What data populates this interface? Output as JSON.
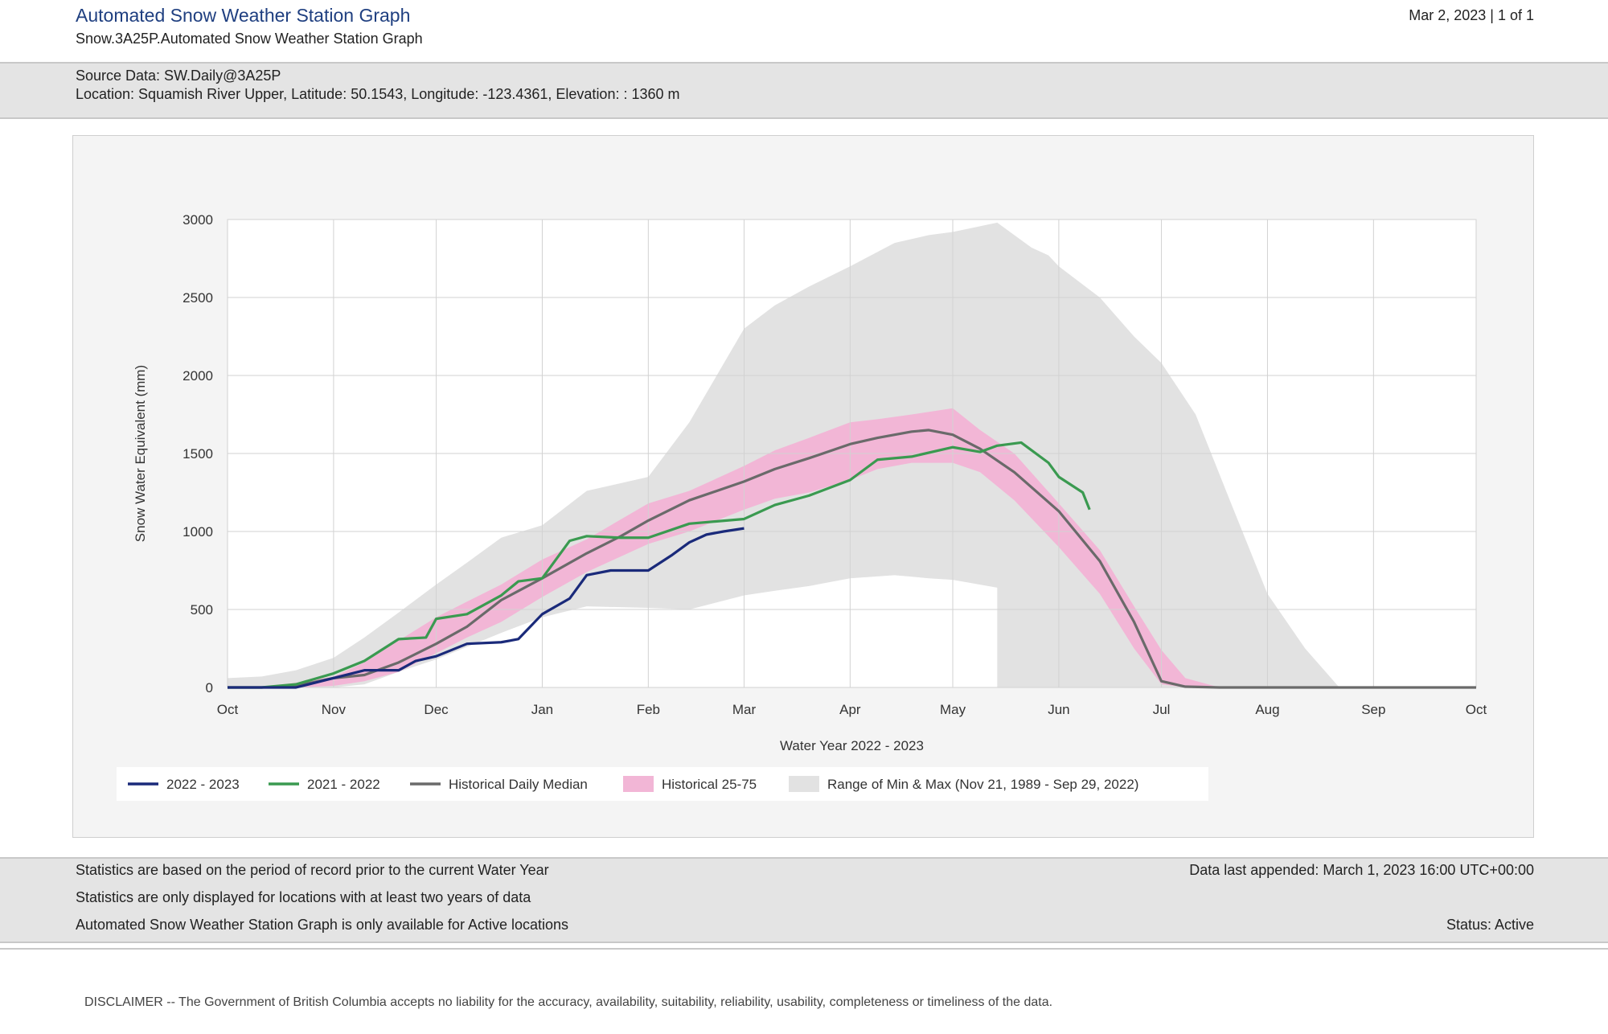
{
  "header": {
    "title": "Automated Snow Weather Station Graph",
    "subtitle": "Snow.3A25P.Automated Snow Weather Station Graph",
    "date_page": "Mar 2, 2023 | 1 of 1"
  },
  "source": {
    "source_data": "Source Data: SW.Daily@3A25P",
    "location": "Location: Squamish River Upper, Latitude: 50.1543, Longitude: -123.4361, Elevation: : 1360 m"
  },
  "footer": {
    "note1": "Statistics are based on the period of record prior to the current Water Year",
    "note2": "Statistics are only displayed for locations with at least two years of data",
    "note3": "Automated Snow Weather Station Graph is only available for Active locations",
    "last_appended": "Data last appended: March 1, 2023 16:00 UTC+00:00",
    "status": "Status: Active"
  },
  "disclaimer": "DISCLAIMER -- The Government of British Columbia accepts no liability for the accuracy, availability, suitability, reliability, usability, completeness or timeliness of the data.",
  "colors": {
    "current": "#1a2a7a",
    "previous": "#3a9a50",
    "median": "#6a6a6a",
    "pct25_75": "#f2b6d6",
    "minmax": "#e2e2e2",
    "grid": "#d2d2d2"
  },
  "chart_data": {
    "type": "area",
    "title": "",
    "xlabel": "Water Year 2022 - 2023",
    "ylabel": "Snow Water Equivalent (mm)",
    "ylim": [
      0,
      3000
    ],
    "yticks": [
      0,
      500,
      1000,
      1500,
      2000,
      2500,
      3000
    ],
    "xlim_days": [
      0,
      365
    ],
    "month_ticks": [
      {
        "label": "Oct",
        "day": 0
      },
      {
        "label": "Nov",
        "day": 31
      },
      {
        "label": "Dec",
        "day": 61
      },
      {
        "label": "Jan",
        "day": 92
      },
      {
        "label": "Feb",
        "day": 123
      },
      {
        "label": "Mar",
        "day": 151
      },
      {
        "label": "Apr",
        "day": 182
      },
      {
        "label": "May",
        "day": 212
      },
      {
        "label": "Jun",
        "day": 243
      },
      {
        "label": "Jul",
        "day": 273
      },
      {
        "label": "Aug",
        "day": 304
      },
      {
        "label": "Sep",
        "day": 335
      },
      {
        "label": "Oct",
        "day": 365
      }
    ],
    "legend": [
      {
        "key": "current",
        "label": "2022 - 2023",
        "kind": "line"
      },
      {
        "key": "previous",
        "label": "2021 - 2022",
        "kind": "line"
      },
      {
        "key": "median",
        "label": "Historical Daily Median",
        "kind": "line"
      },
      {
        "key": "pct25_75",
        "label": "Historical 25-75",
        "kind": "box"
      },
      {
        "key": "minmax",
        "label": "Range of Min & Max (Nov 21, 1989 - Sep 29, 2022)",
        "kind": "box"
      }
    ],
    "series": [
      {
        "key": "minmax",
        "name": "Range of Min & Max (Nov 21, 1989 - Sep 29, 2022)",
        "x": [
          0,
          10,
          20,
          31,
          40,
          50,
          61,
          70,
          80,
          92,
          105,
          123,
          135,
          151,
          160,
          170,
          182,
          195,
          205,
          212,
          225,
          225,
          235,
          240,
          243,
          255,
          265,
          273,
          283,
          293,
          304,
          315,
          325,
          335,
          345,
          365
        ],
        "low": [
          0,
          0,
          0,
          0,
          20,
          100,
          180,
          260,
          350,
          450,
          520,
          510,
          500,
          590,
          620,
          650,
          700,
          720,
          700,
          690,
          640,
          0,
          0,
          0,
          0,
          0,
          0,
          0,
          0,
          0,
          0,
          0,
          0,
          0,
          0,
          0
        ],
        "high": [
          60,
          70,
          110,
          190,
          320,
          480,
          660,
          800,
          960,
          1040,
          1260,
          1350,
          1700,
          2300,
          2450,
          2570,
          2700,
          2850,
          2900,
          2920,
          2980,
          2980,
          2820,
          2770,
          2700,
          2500,
          2250,
          2080,
          1750,
          1200,
          600,
          250,
          0,
          0,
          0,
          0
        ]
      },
      {
        "key": "pct25_75",
        "name": "Historical 25-75",
        "x": [
          0,
          10,
          20,
          31,
          40,
          50,
          61,
          70,
          80,
          92,
          105,
          123,
          135,
          151,
          160,
          170,
          182,
          190,
          200,
          212,
          220,
          230,
          243,
          255,
          265,
          273,
          280,
          290,
          304,
          365
        ],
        "low": [
          0,
          0,
          0,
          10,
          40,
          100,
          220,
          320,
          420,
          580,
          740,
          920,
          1000,
          1140,
          1210,
          1250,
          1330,
          1400,
          1440,
          1440,
          1380,
          1200,
          900,
          600,
          250,
          20,
          0,
          0,
          0,
          0
        ],
        "high": [
          0,
          5,
          30,
          70,
          160,
          300,
          450,
          550,
          660,
          820,
          950,
          1180,
          1260,
          1420,
          1520,
          1600,
          1700,
          1720,
          1750,
          1790,
          1650,
          1500,
          1180,
          880,
          520,
          240,
          60,
          0,
          0,
          0
        ]
      },
      {
        "key": "median",
        "name": "Historical Daily Median",
        "x": [
          0,
          10,
          20,
          31,
          40,
          50,
          61,
          70,
          80,
          92,
          105,
          115,
          123,
          135,
          151,
          160,
          170,
          182,
          190,
          200,
          205,
          212,
          220,
          230,
          243,
          255,
          265,
          273,
          280,
          290,
          304,
          335,
          365
        ],
        "y": [
          0,
          0,
          10,
          60,
          80,
          160,
          280,
          390,
          560,
          700,
          860,
          970,
          1070,
          1200,
          1320,
          1400,
          1470,
          1560,
          1600,
          1640,
          1650,
          1620,
          1530,
          1380,
          1130,
          810,
          420,
          40,
          5,
          0,
          0,
          0,
          0
        ]
      },
      {
        "key": "previous",
        "name": "2021 - 2022",
        "x": [
          0,
          10,
          20,
          31,
          40,
          50,
          58,
          61,
          70,
          80,
          85,
          92,
          100,
          105,
          115,
          123,
          135,
          151,
          160,
          170,
          182,
          190,
          200,
          212,
          220,
          225,
          232,
          240,
          243,
          250,
          252
        ],
        "y": [
          0,
          0,
          20,
          90,
          170,
          310,
          320,
          440,
          470,
          590,
          680,
          700,
          940,
          970,
          960,
          960,
          1050,
          1080,
          1170,
          1230,
          1330,
          1460,
          1480,
          1540,
          1510,
          1550,
          1570,
          1440,
          1350,
          1250,
          1140
        ]
      },
      {
        "key": "current",
        "name": "2022 - 2023",
        "x": [
          0,
          10,
          20,
          31,
          40,
          50,
          55,
          61,
          70,
          80,
          85,
          92,
          100,
          105,
          112,
          123,
          130,
          135,
          140,
          145,
          151
        ],
        "y": [
          0,
          0,
          0,
          60,
          110,
          110,
          170,
          200,
          280,
          290,
          310,
          470,
          570,
          720,
          750,
          750,
          850,
          930,
          980,
          1000,
          1020
        ]
      }
    ]
  }
}
